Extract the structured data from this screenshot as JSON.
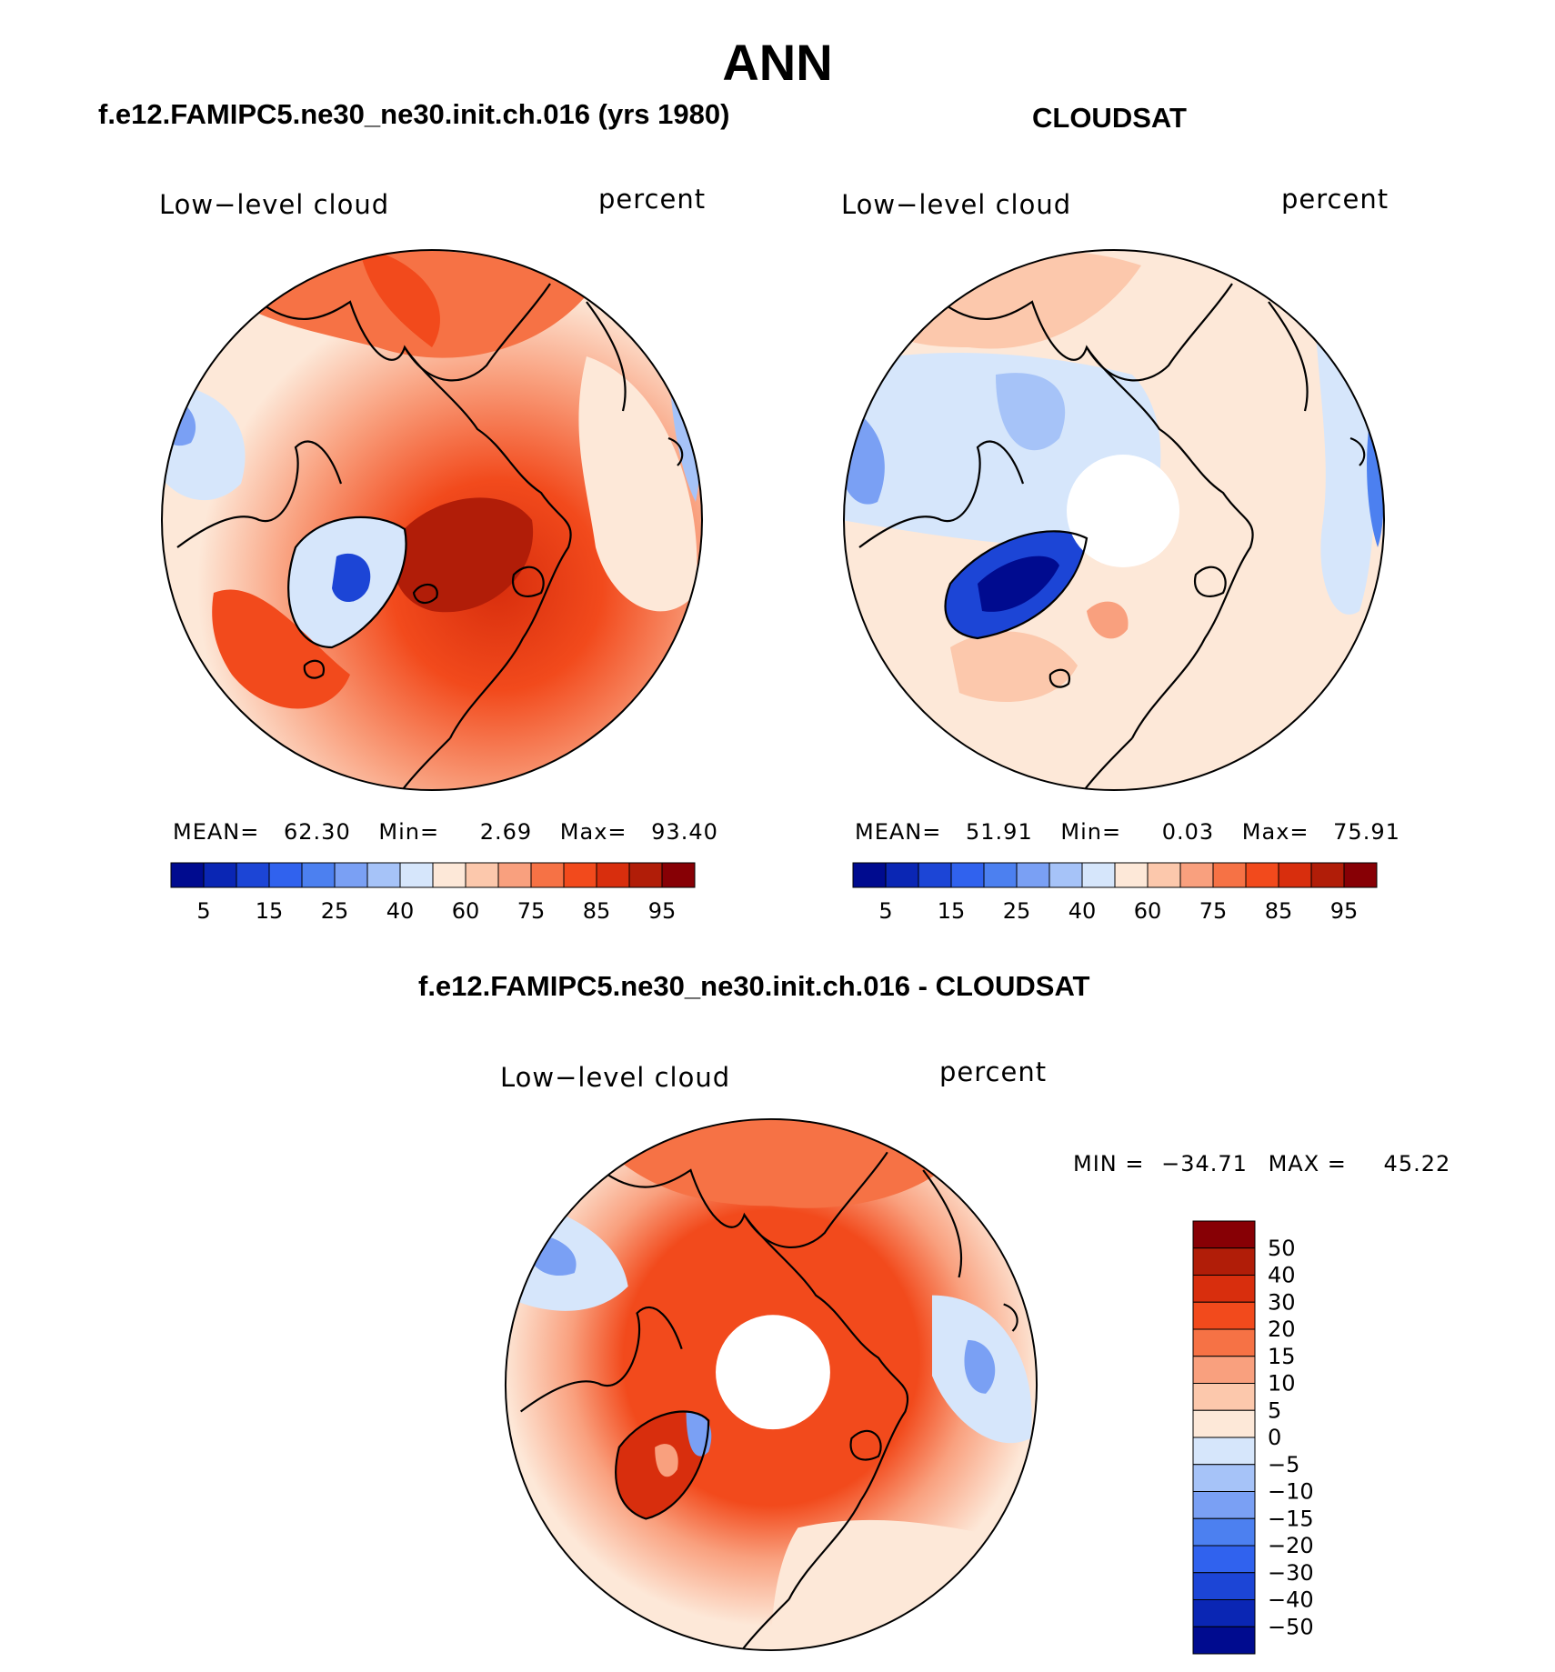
{
  "page": {
    "title": "ANN",
    "model_title": "f.e12.FAMIPC5.ne30_ne30.init.ch.016 (yrs 1980)",
    "obs_title": "CLOUDSAT",
    "diff_title": "f.e12.FAMIPC5.ne30_ne30.init.ch.016 - CLOUDSAT"
  },
  "chart_data": [
    {
      "type": "heatmap",
      "projection": "polar-stereographic (north)",
      "variable_label": "Low−level cloud",
      "units_label": "percent",
      "stats": {
        "mean_label": "MEAN=",
        "mean": "62.30",
        "min_label": "Min=",
        "min": "2.69",
        "max_label": "Max=",
        "max": "93.40"
      },
      "colorbar": {
        "orientation": "horizontal",
        "levels": [
          5,
          10,
          15,
          20,
          25,
          30,
          40,
          50,
          60,
          70,
          75,
          80,
          85,
          90,
          95
        ],
        "tick_labels": [
          "5",
          "15",
          "25",
          "40",
          "60",
          "75",
          "85",
          "95"
        ],
        "colors": [
          "#000b8f",
          "#0a26b4",
          "#1c45d6",
          "#3062ee",
          "#4c80f0",
          "#7aa0f4",
          "#a6c3f8",
          "#d6e6fb",
          "#fde8d8",
          "#fcc8ac",
          "#f9a07e",
          "#f67245",
          "#f24a1c",
          "#d82e0d",
          "#b11d08",
          "#870005"
        ]
      },
      "regions": "cloud fraction high (80-90%) over North Atlantic / Barents Sea and N. Pacific; low (5-25%) over Greenland interior and Siberia near 40-60%"
    },
    {
      "type": "heatmap",
      "projection": "polar-stereographic (north)",
      "variable_label": "Low−level cloud",
      "units_label": "percent",
      "stats": {
        "mean_label": "MEAN=",
        "mean": "51.91",
        "min_label": "Min=",
        "min": "0.03",
        "max_label": "Max=",
        "max": "75.91"
      },
      "colorbar": {
        "orientation": "horizontal",
        "levels": [
          5,
          10,
          15,
          20,
          25,
          30,
          40,
          50,
          60,
          70,
          75,
          80,
          85,
          90,
          95
        ],
        "tick_labels": [
          "5",
          "15",
          "25",
          "40",
          "60",
          "75",
          "85",
          "95"
        ],
        "colors": [
          "#000b8f",
          "#0a26b4",
          "#1c45d6",
          "#3062ee",
          "#4c80f0",
          "#7aa0f4",
          "#a6c3f8",
          "#d6e6fb",
          "#fde8d8",
          "#fcc8ac",
          "#f9a07e",
          "#f67245",
          "#f24a1c",
          "#d82e0d",
          "#b11d08",
          "#870005"
        ]
      },
      "regions": "mostly 40-70%; minimum (<15%) over Greenland; missing data poleward of ~82N"
    },
    {
      "type": "heatmap",
      "projection": "polar-stereographic (north)",
      "variable_label": "Low−level cloud",
      "units_label": "percent",
      "stats": {
        "min_label": "MIN =",
        "min": "−34.71",
        "max_label": "MAX =",
        "max": "45.22"
      },
      "colorbar": {
        "orientation": "vertical",
        "levels": [
          -50,
          -40,
          -30,
          -20,
          -15,
          -10,
          -5,
          0,
          5,
          10,
          15,
          20,
          30,
          40,
          50
        ],
        "tick_labels": [
          "50",
          "40",
          "30",
          "20",
          "15",
          "10",
          "5",
          "0",
          "−5",
          "−10",
          "−15",
          "−20",
          "−30",
          "−40",
          "−50"
        ],
        "colors_top_to_bottom": [
          "#870005",
          "#b11d08",
          "#d82e0d",
          "#f24a1c",
          "#f67245",
          "#f9a07e",
          "#fcc8ac",
          "#fde8d8",
          "#d6e6fb",
          "#a6c3f8",
          "#7aa0f4",
          "#4c80f0",
          "#3062ee",
          "#1c45d6",
          "#0a26b4",
          "#000b8f"
        ]
      },
      "regions": "positive bias (+15 to +30) over Arctic Ocean and Greenland/Atlantic sector; negative bias (-5 to -20) over N. Pacific/Eastern Siberia margins"
    }
  ]
}
